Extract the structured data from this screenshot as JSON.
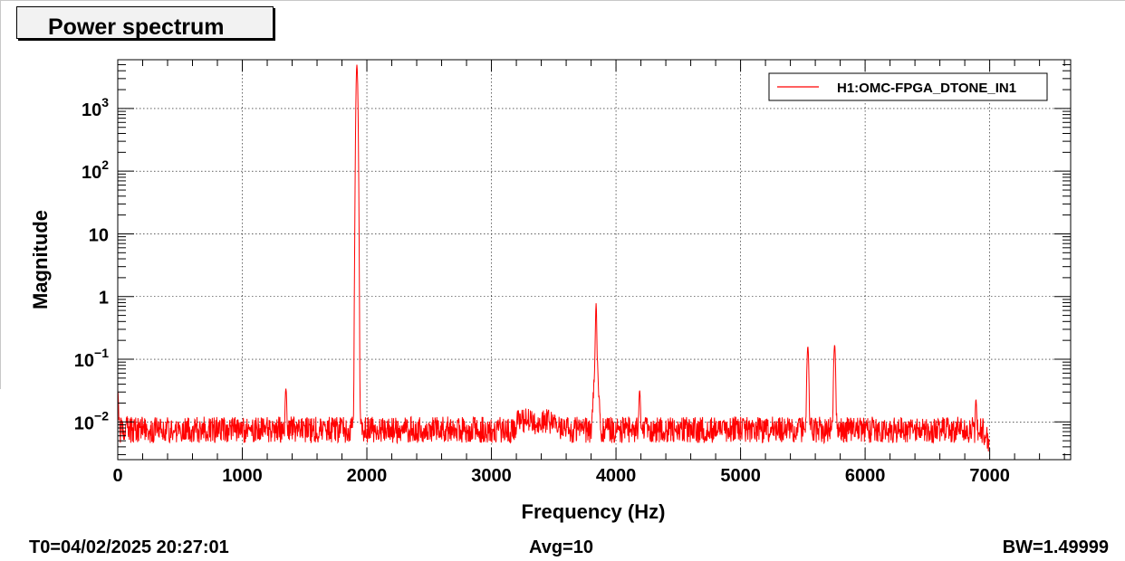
{
  "title": "Power spectrum",
  "footer": {
    "t0": "T0=04/02/2025 20:27:01",
    "avg": "Avg=10",
    "bw": "BW=1.49999"
  },
  "colors": {
    "series": "#ff0000",
    "title_box_bg": "#f2f2f2",
    "grid": "#000000"
  },
  "chart_data": {
    "type": "line",
    "title": "Power spectrum",
    "xlabel": "Frequency (Hz)",
    "ylabel": "Magnitude",
    "x_scale": "linear",
    "y_scale": "log",
    "xlim": [
      0,
      7650
    ],
    "ylim": [
      0.0025,
      6000
    ],
    "grid": true,
    "legend_position": "top-right",
    "x_ticks": [
      {
        "value": 0,
        "label": "0"
      },
      {
        "value": 1000,
        "label": "1000"
      },
      {
        "value": 2000,
        "label": "2000"
      },
      {
        "value": 3000,
        "label": "3000"
      },
      {
        "value": 4000,
        "label": "4000"
      },
      {
        "value": 5000,
        "label": "5000"
      },
      {
        "value": 6000,
        "label": "6000"
      },
      {
        "value": 7000,
        "label": "7000"
      }
    ],
    "y_ticks": [
      {
        "value": 0.01,
        "base": "10",
        "exp": "−2"
      },
      {
        "value": 0.1,
        "base": "10",
        "exp": "−1"
      },
      {
        "value": 1,
        "base": "1",
        "exp": ""
      },
      {
        "value": 10,
        "base": "10",
        "exp": ""
      },
      {
        "value": 100,
        "base": "10",
        "exp": "2"
      },
      {
        "value": 1000,
        "base": "10",
        "exp": "3"
      }
    ],
    "series": [
      {
        "name": "H1:OMC-FPGA_DTONE_IN1",
        "color": "#ff0000",
        "x_range": [
          0,
          7000
        ],
        "noise_floor": 0.0075,
        "features": [
          {
            "x": 0,
            "y": 0.032
          },
          {
            "x": 1350,
            "y": 0.034
          },
          {
            "x": 1920,
            "y": 5000
          },
          {
            "x": 3840,
            "y": 0.78
          },
          {
            "x": 4190,
            "y": 0.032
          },
          {
            "x": 5540,
            "y": 0.16
          },
          {
            "x": 5755,
            "y": 0.17
          },
          {
            "x": 6890,
            "y": 0.023
          }
        ]
      }
    ]
  }
}
